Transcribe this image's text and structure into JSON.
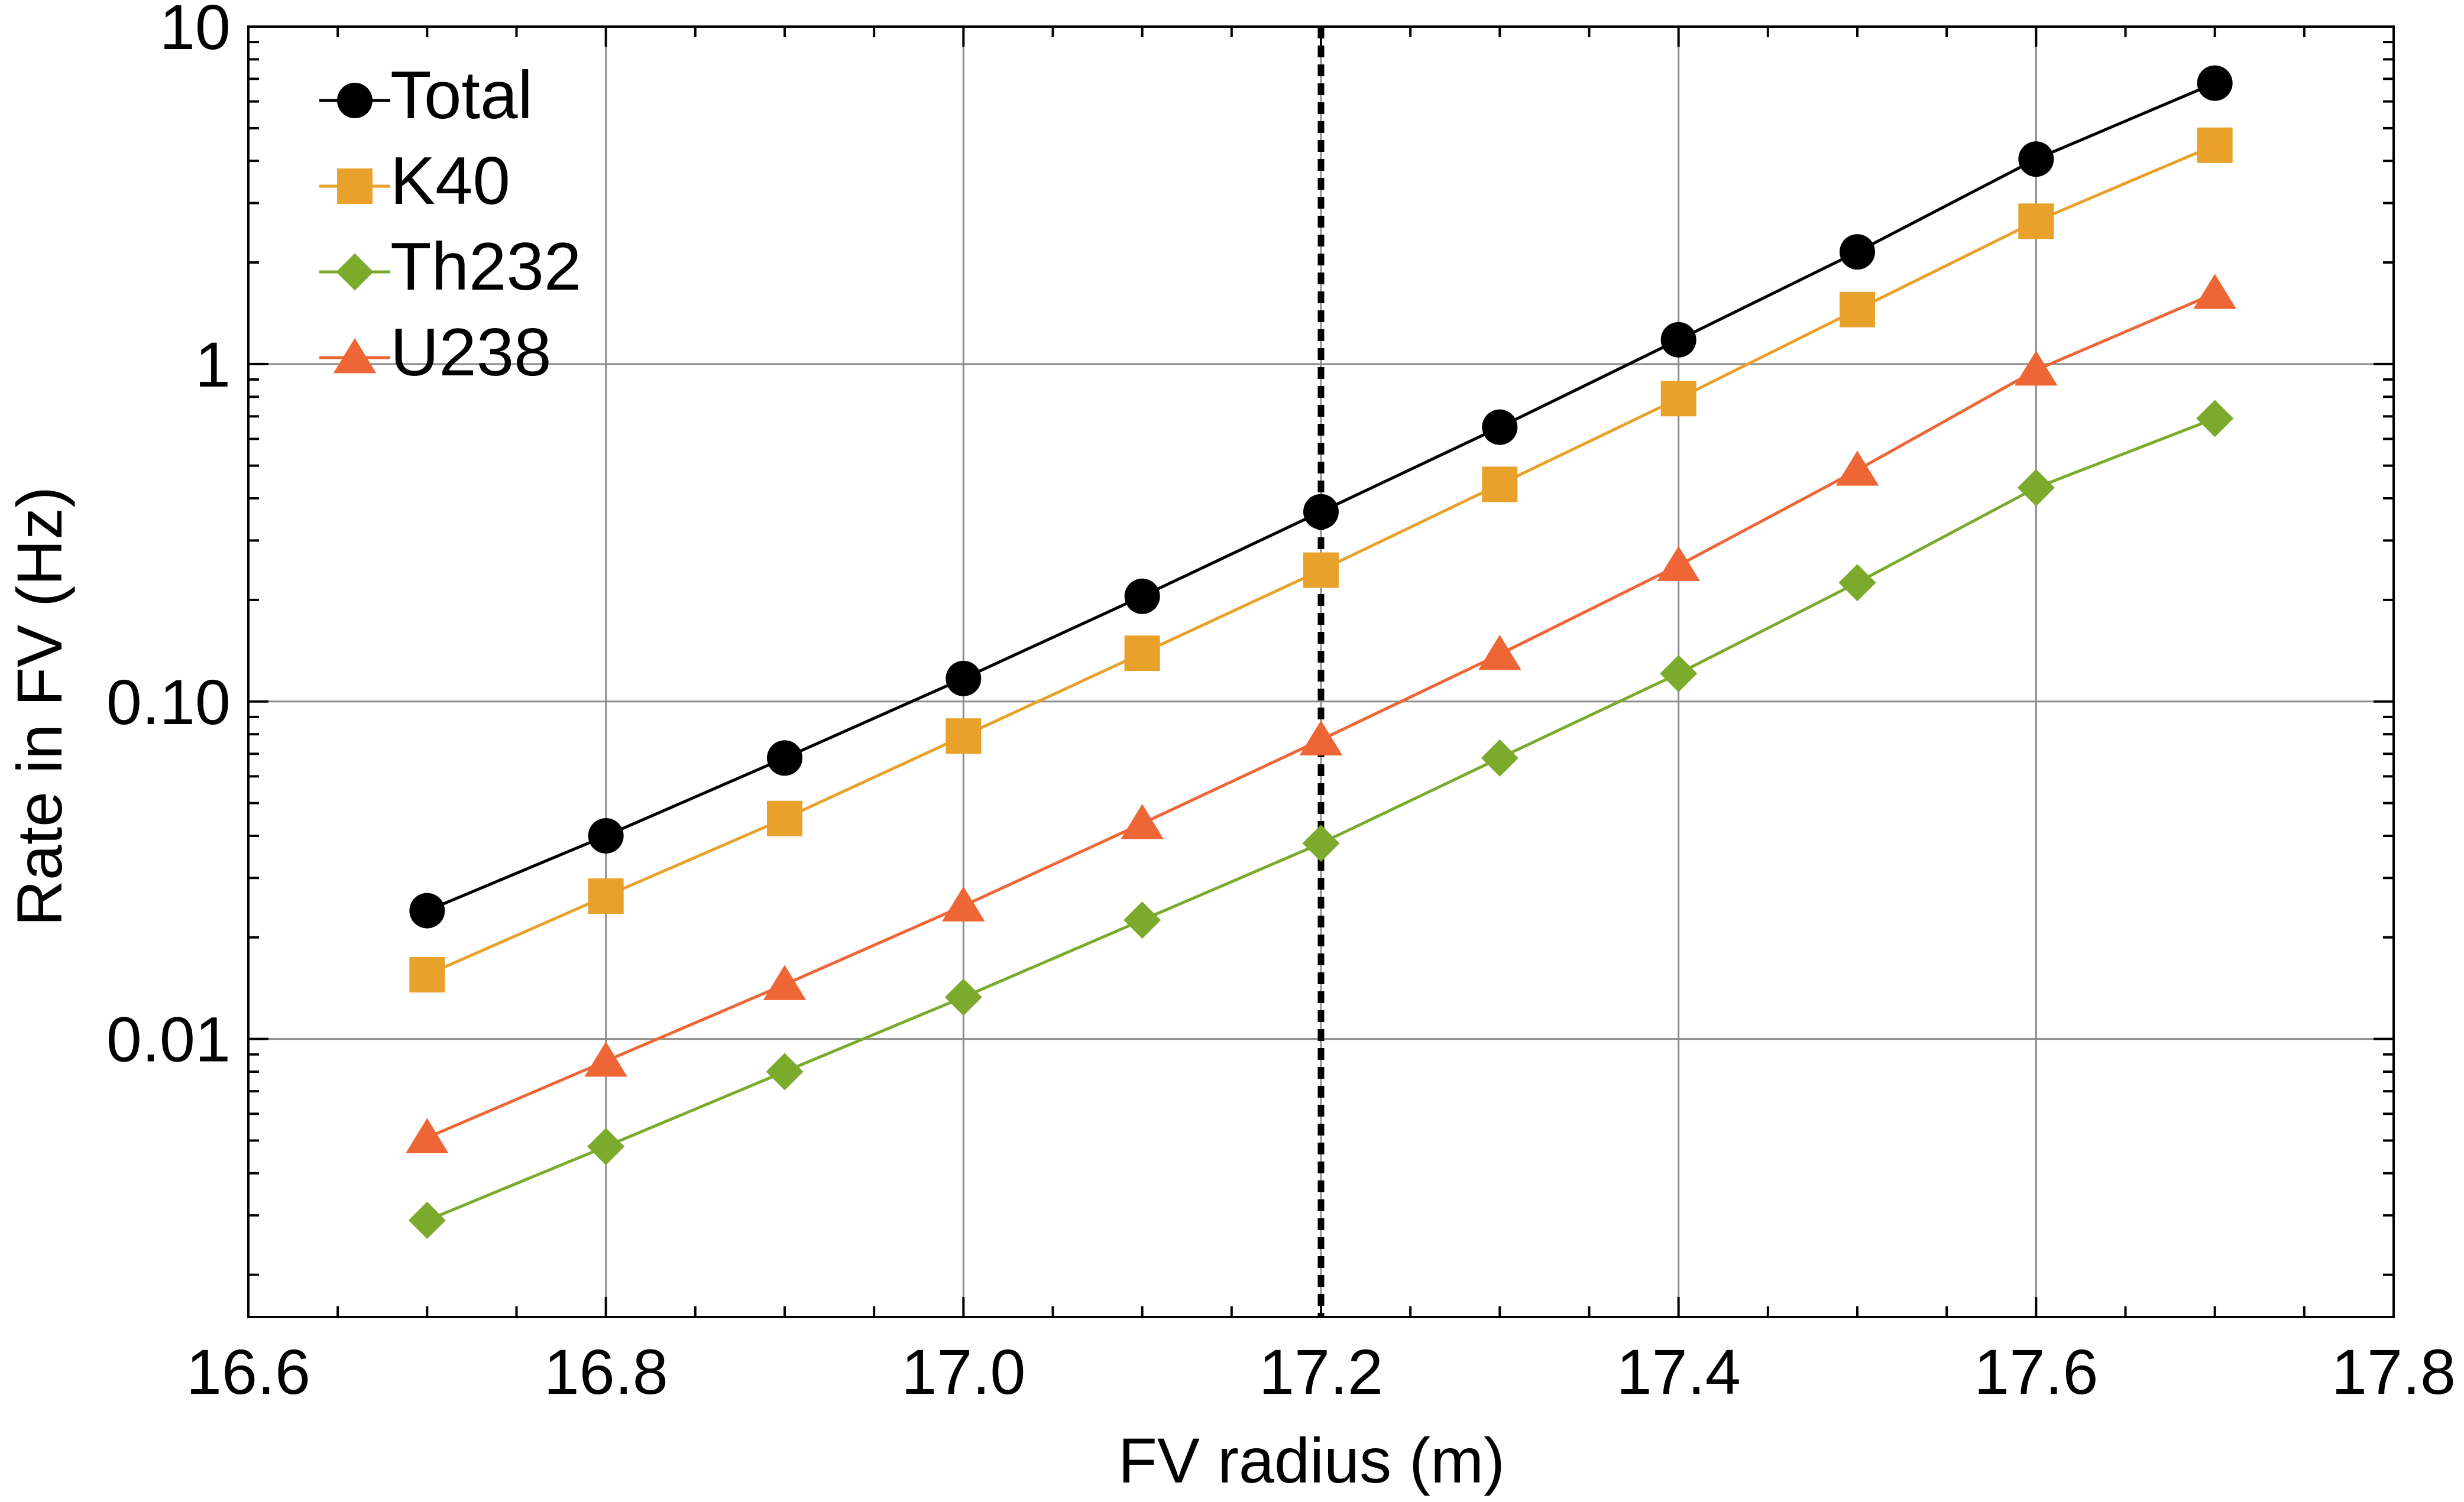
{
  "chart_data": {
    "type": "line",
    "title": "",
    "xlabel": "FV radius (m)",
    "ylabel": "Rate in FV (Hz)",
    "x_scale": "linear",
    "y_scale": "log",
    "xlim": [
      16.6,
      17.8
    ],
    "ylim": [
      0.0015,
      10
    ],
    "x_ticks": [
      16.6,
      16.8,
      17.0,
      17.2,
      17.4,
      17.6,
      17.8
    ],
    "x_tick_labels": [
      "16.6",
      "16.8",
      "17.0",
      "17.2",
      "17.4",
      "17.6",
      "17.8"
    ],
    "y_ticks": [
      0.01,
      0.1,
      1,
      10
    ],
    "y_tick_labels": [
      "0.01",
      "0.10",
      "1",
      "10"
    ],
    "grid": true,
    "legend_position": "top-left",
    "x": [
      16.7,
      16.8,
      16.9,
      17.0,
      17.1,
      17.2,
      17.3,
      17.4,
      17.5,
      17.6,
      17.7
    ],
    "series": [
      {
        "name": "Total",
        "color": "#000000",
        "marker": "circle",
        "values": [
          0.024,
          0.04,
          0.068,
          0.117,
          0.205,
          0.365,
          0.65,
          1.18,
          2.15,
          4.05,
          6.8
        ]
      },
      {
        "name": "K40",
        "color": "#E8A12A",
        "marker": "square",
        "values": [
          0.0155,
          0.0265,
          0.045,
          0.079,
          0.139,
          0.245,
          0.44,
          0.79,
          1.45,
          2.65,
          4.45
        ]
      },
      {
        "name": "Th232",
        "color": "#7BAA2C",
        "marker": "diamond",
        "values": [
          0.0029,
          0.0048,
          0.008,
          0.0133,
          0.0225,
          0.038,
          0.068,
          0.121,
          0.225,
          0.43,
          0.69
        ]
      },
      {
        "name": "U238",
        "color": "#EE6635",
        "marker": "triangle",
        "values": [
          0.0051,
          0.0086,
          0.0145,
          0.0248,
          0.0435,
          0.077,
          0.138,
          0.253,
          0.485,
          0.96,
          1.62
        ]
      }
    ],
    "annotations": [
      {
        "type": "vertical-dashed-line",
        "x": 17.2,
        "color": "#000000"
      }
    ]
  }
}
